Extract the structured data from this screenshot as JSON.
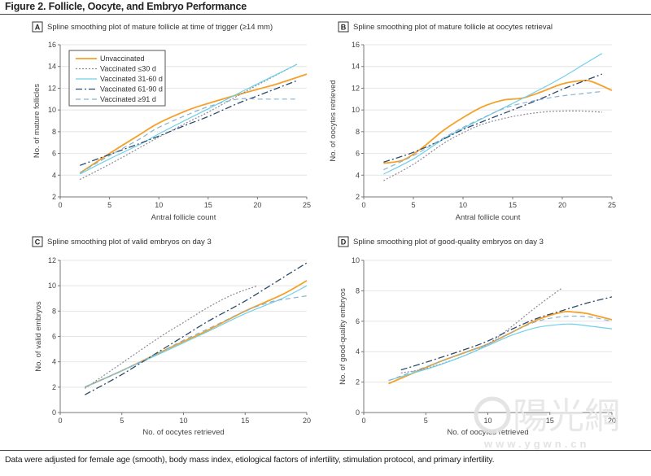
{
  "figure": {
    "title": "Figure 2. Follicle, Oocyte, and Embryo Performance",
    "footnote": "Data were adjusted for female age (smooth), body mass index, etiological factors of infertility, stimulation protocol, and primary infertility."
  },
  "watermark": {
    "text": "陽光網",
    "url": "www.ygwn.cn"
  },
  "series_styles": [
    {
      "name": "Unvaccinated",
      "color": "#f5a028",
      "dash": "",
      "width": 1.8
    },
    {
      "name": "Vaccinated ≤30 d",
      "color": "#8a8a9a",
      "dash": "2,2",
      "width": 1.2
    },
    {
      "name": "Vaccinated 31-60 d",
      "color": "#6fd0ea",
      "dash": "",
      "width": 1.2
    },
    {
      "name": "Vaccinated 61-90 d",
      "color": "#2c4a6a",
      "dash": "8,3,2,3",
      "width": 1.3
    },
    {
      "name": "Vaccinated ≥91 d",
      "color": "#86b2cf",
      "dash": "6,4",
      "width": 1.2
    }
  ],
  "legend": {
    "placement": "top-left",
    "panel": "A",
    "entries": [
      "Unvaccinated",
      "Vaccinated ≤30 d",
      "Vaccinated 31-60 d",
      "Vaccinated 61-90 d",
      "Vaccinated ≥91 d"
    ]
  },
  "chart_data": [
    {
      "type": "line",
      "panel": "A",
      "title": "Spline smoothing plot of mature follicle at time of trigger (≥14 mm)",
      "xlabel": "Antral follicle count",
      "ylabel": "No. of mature follicles",
      "xlim": [
        0,
        25
      ],
      "ylim": [
        2,
        16
      ],
      "xticks": [
        0,
        5,
        10,
        15,
        20,
        25
      ],
      "yticks": [
        2,
        4,
        6,
        8,
        10,
        12,
        14,
        16
      ],
      "grid": true,
      "series": [
        {
          "name": "Unvaccinated",
          "x": [
            2,
            5,
            8,
            10,
            13,
            15,
            18,
            20,
            22,
            25
          ],
          "y": [
            4.2,
            6.0,
            7.7,
            8.8,
            10.0,
            10.6,
            11.4,
            11.9,
            12.4,
            13.3
          ]
        },
        {
          "name": "Vaccinated ≤30 d",
          "x": [
            2,
            5,
            8,
            10,
            13,
            15,
            18,
            20,
            24
          ],
          "y": [
            3.6,
            5.0,
            6.5,
            7.5,
            8.9,
            9.8,
            11.3,
            12.3,
            14.2
          ]
        },
        {
          "name": "Vaccinated 31-60 d",
          "x": [
            2,
            5,
            8,
            10,
            13,
            15,
            18,
            20,
            24
          ],
          "y": [
            4.1,
            5.5,
            6.8,
            7.8,
            9.2,
            10.1,
            11.5,
            12.4,
            14.2
          ]
        },
        {
          "name": "Vaccinated 61-90 d",
          "x": [
            2,
            5,
            8,
            10,
            13,
            15,
            18,
            20,
            24
          ],
          "y": [
            4.9,
            5.9,
            6.9,
            7.6,
            8.7,
            9.4,
            10.6,
            11.3,
            12.7
          ]
        },
        {
          "name": "Vaccinated ≥91 d",
          "x": [
            2,
            5,
            8,
            10,
            13,
            15,
            18,
            20,
            22,
            24
          ],
          "y": [
            4.2,
            5.8,
            7.3,
            8.4,
            9.6,
            10.3,
            11.0,
            11.0,
            11.0,
            11.0
          ]
        }
      ]
    },
    {
      "type": "line",
      "panel": "B",
      "title": "Spline smoothing plot of mature follicle at oocytes retrieval",
      "xlabel": "Antral follicle count",
      "ylabel": "No. of oocytes retrieved",
      "xlim": [
        0,
        25
      ],
      "ylim": [
        2,
        16
      ],
      "xticks": [
        0,
        5,
        10,
        15,
        20,
        25
      ],
      "yticks": [
        2,
        4,
        6,
        8,
        10,
        12,
        14,
        16
      ],
      "grid": true,
      "series": [
        {
          "name": "Unvaccinated",
          "x": [
            2,
            4,
            6,
            8,
            10,
            12,
            14,
            16,
            18,
            20,
            22,
            23,
            25
          ],
          "y": [
            5.1,
            5.4,
            6.6,
            8.1,
            9.3,
            10.3,
            10.9,
            11.1,
            11.7,
            12.4,
            12.7,
            12.6,
            11.8
          ]
        },
        {
          "name": "Vaccinated ≤30 d",
          "x": [
            2,
            5,
            8,
            10,
            12,
            15,
            18,
            20,
            22,
            24
          ],
          "y": [
            3.5,
            5.0,
            6.9,
            7.9,
            8.7,
            9.4,
            9.8,
            9.9,
            9.9,
            9.8
          ]
        },
        {
          "name": "Vaccinated 31-60 d",
          "x": [
            2,
            5,
            8,
            10,
            13,
            15,
            18,
            20,
            22,
            24
          ],
          "y": [
            4.1,
            5.5,
            7.3,
            8.3,
            9.7,
            10.6,
            12.0,
            13.0,
            14.1,
            15.2
          ]
        },
        {
          "name": "Vaccinated 61-90 d",
          "x": [
            2,
            5,
            8,
            10,
            13,
            15,
            18,
            20,
            22,
            24
          ],
          "y": [
            5.2,
            6.1,
            7.3,
            8.2,
            9.3,
            10.0,
            11.1,
            11.9,
            12.6,
            13.3
          ]
        },
        {
          "name": "Vaccinated ≥91 d",
          "x": [
            2,
            5,
            8,
            10,
            13,
            15,
            18,
            20,
            22,
            24
          ],
          "y": [
            4.5,
            5.8,
            7.4,
            8.4,
            9.7,
            10.4,
            11.0,
            11.3,
            11.5,
            11.7
          ]
        }
      ]
    },
    {
      "type": "line",
      "panel": "C",
      "title": "Spline smoothing plot of valid embryos on day 3",
      "xlabel": "No. of oocytes retrieved",
      "ylabel": "No. of valid embryos",
      "xlim": [
        0,
        20
      ],
      "ylim": [
        0,
        12
      ],
      "xticks": [
        0,
        5,
        10,
        15,
        20
      ],
      "yticks": [
        0,
        2,
        4,
        6,
        8,
        10,
        12
      ],
      "grid": true,
      "series": [
        {
          "name": "Unvaccinated",
          "x": [
            2,
            5,
            8,
            10,
            12,
            15,
            18,
            20
          ],
          "y": [
            2.0,
            3.3,
            4.7,
            5.6,
            6.5,
            8.0,
            9.3,
            10.4
          ]
        },
        {
          "name": "Vaccinated ≤30 d",
          "x": [
            2,
            5,
            8,
            10,
            12,
            14,
            16
          ],
          "y": [
            1.9,
            3.9,
            5.9,
            7.1,
            8.3,
            9.3,
            10.0
          ]
        },
        {
          "name": "Vaccinated 31-60 d",
          "x": [
            2,
            5,
            8,
            10,
            12,
            15,
            18,
            20
          ],
          "y": [
            2.0,
            3.3,
            4.6,
            5.5,
            6.4,
            7.8,
            9.0,
            10.0
          ]
        },
        {
          "name": "Vaccinated 61-90 d",
          "x": [
            2,
            5,
            8,
            10,
            12,
            15,
            18,
            20
          ],
          "y": [
            1.4,
            3.0,
            4.8,
            6.0,
            7.2,
            8.8,
            10.6,
            11.8
          ]
        },
        {
          "name": "Vaccinated ≥91 d",
          "x": [
            2,
            5,
            8,
            10,
            12,
            15,
            17,
            18,
            20
          ],
          "y": [
            2.0,
            3.3,
            4.7,
            5.7,
            6.6,
            8.0,
            8.7,
            8.9,
            9.2
          ]
        }
      ]
    },
    {
      "type": "line",
      "panel": "D",
      "title": "Spline smoothing plot of good-quality embryos on day 3",
      "xlabel": "No. of oocytes retrieved",
      "ylabel": "No. of good-quality embryos",
      "xlim": [
        0,
        20
      ],
      "ylim": [
        0,
        10
      ],
      "xticks": [
        0,
        5,
        10,
        15,
        20
      ],
      "yticks": [
        0,
        2,
        4,
        6,
        8,
        10
      ],
      "grid": true,
      "series": [
        {
          "name": "Unvaccinated",
          "x": [
            2,
            4,
            6,
            8,
            10,
            12,
            14,
            16,
            17,
            18,
            20
          ],
          "y": [
            1.9,
            2.6,
            3.3,
            3.9,
            4.5,
            5.3,
            6.1,
            6.6,
            6.6,
            6.5,
            6.1
          ]
        },
        {
          "name": "Vaccinated ≤30 d",
          "x": [
            3,
            5,
            8,
            10,
            12,
            14,
            16
          ],
          "y": [
            2.6,
            2.9,
            3.7,
            4.5,
            5.7,
            7.0,
            8.2
          ]
        },
        {
          "name": "Vaccinated 31-60 d",
          "x": [
            2,
            4,
            6,
            8,
            10,
            12,
            14,
            16,
            17,
            18,
            20
          ],
          "y": [
            2.1,
            2.6,
            3.1,
            3.7,
            4.4,
            5.1,
            5.6,
            5.8,
            5.8,
            5.7,
            5.5
          ]
        },
        {
          "name": "Vaccinated 61-90 d",
          "x": [
            3,
            5,
            8,
            10,
            12,
            14,
            16,
            18,
            20
          ],
          "y": [
            2.8,
            3.3,
            4.1,
            4.7,
            5.5,
            6.2,
            6.7,
            7.2,
            7.6
          ]
        },
        {
          "name": "Vaccinated ≥91 d",
          "x": [
            2,
            4,
            6,
            8,
            10,
            12,
            14,
            16,
            18,
            20
          ],
          "y": [
            2.1,
            2.7,
            3.3,
            3.9,
            4.5,
            5.3,
            6.0,
            6.3,
            6.3,
            6.0
          ]
        }
      ]
    }
  ]
}
